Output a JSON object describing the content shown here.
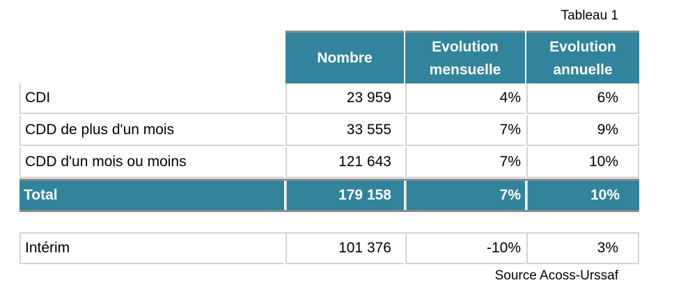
{
  "caption": "Tableau 1",
  "columns": [
    "Nombre",
    "Evolution\nmensuelle",
    "Evolution\nannuelle"
  ],
  "rows": [
    {
      "label": "CDI",
      "nombre": "23 959",
      "mensuelle": "4%",
      "annuelle": "6%"
    },
    {
      "label": "CDD de plus d'un mois",
      "nombre": "33 555",
      "mensuelle": "7%",
      "annuelle": "9%"
    },
    {
      "label": "CDD d'un mois ou moins",
      "nombre": "121 643",
      "mensuelle": "7%",
      "annuelle": "10%"
    }
  ],
  "total": {
    "label": "Total",
    "nombre": "179 158",
    "mensuelle": "7%",
    "annuelle": "10%"
  },
  "interim": {
    "label": "Intérim",
    "nombre": "101 376",
    "mensuelle": "-10%",
    "annuelle": "3%"
  },
  "source": "Source Acoss-Urssaf",
  "colors": {
    "header_bg": "#31849b",
    "grid_line": "#d3d3d3",
    "rule": "#8c8c8c"
  }
}
